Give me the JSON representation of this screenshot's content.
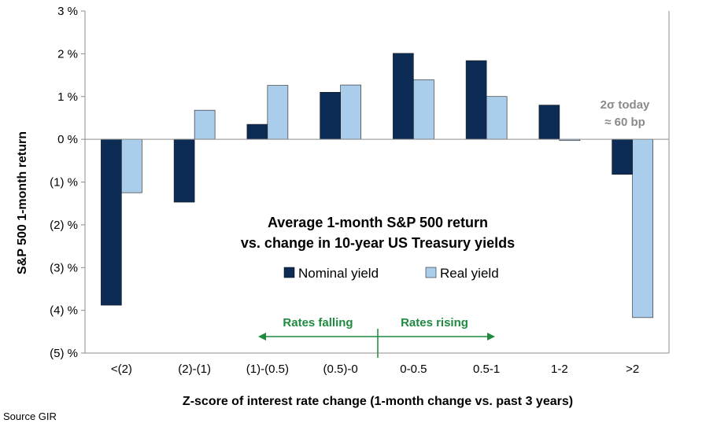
{
  "chart_data": {
    "type": "bar",
    "title_lines": [
      "Average 1-month S&P 500 return",
      "vs. change in 10-year US Treasury yields"
    ],
    "xlabel": "Z-score of interest rate change (1-month change vs. past 3 years)",
    "ylabel": "S&P 500 1-month return",
    "categories": [
      "<(2)",
      "(2)-(1)",
      "(1)-(0.5)",
      "(0.5)-0",
      "0-0.5",
      "0.5-1",
      "1-2",
      ">2"
    ],
    "series": [
      {
        "name": "Nominal yield",
        "color": "#0c2c56",
        "values": [
          -3.88,
          -1.47,
          0.35,
          1.1,
          2.01,
          1.84,
          0.8,
          -0.82
        ]
      },
      {
        "name": "Real yield",
        "color": "#a9cdea",
        "values": [
          -1.25,
          0.68,
          1.26,
          1.27,
          1.39,
          1.0,
          -0.03,
          -4.17
        ]
      }
    ],
    "y_ticks": [
      {
        "value": 3,
        "label": "3 %"
      },
      {
        "value": 2,
        "label": "2 %"
      },
      {
        "value": 1,
        "label": "1 %"
      },
      {
        "value": 0,
        "label": "0 %"
      },
      {
        "value": -1,
        "label": "(1) %"
      },
      {
        "value": -2,
        "label": "(2) %"
      },
      {
        "value": -3,
        "label": "(3) %"
      },
      {
        "value": -4,
        "label": "(4) %"
      },
      {
        "value": -5,
        "label": "(5) %"
      }
    ],
    "ylim": [
      -5,
      3
    ],
    "grid": false,
    "legend_position": "center",
    "annotations": {
      "rates_falling": "Rates falling",
      "rates_rising": "Rates rising",
      "rate_color": "#1f8a3f",
      "callout_line1": "2σ today",
      "callout_line2": "≈ 60 bp"
    }
  },
  "footer": {
    "source": "Source GIR"
  }
}
